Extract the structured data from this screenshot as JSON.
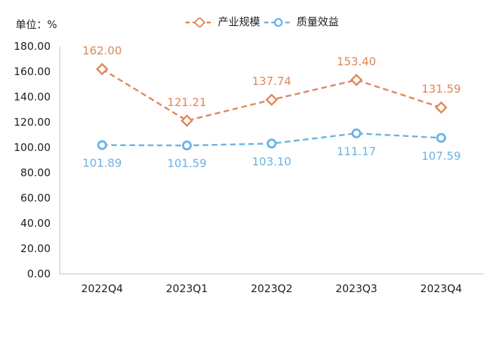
{
  "unit_label": "单位：%",
  "chart_data": {
    "type": "line",
    "categories": [
      "2022Q4",
      "2023Q1",
      "2023Q2",
      "2023Q3",
      "2023Q4"
    ],
    "series": [
      {
        "name": "产业规模",
        "values": [
          162.0,
          121.21,
          137.74,
          153.4,
          131.59
        ],
        "color": "#e0875a",
        "marker": "diamond",
        "line_style": "dashed",
        "label_position": "above"
      },
      {
        "name": "质量效益",
        "values": [
          101.89,
          101.59,
          103.1,
          111.17,
          107.59
        ],
        "color": "#6ab3e5",
        "marker": "circle",
        "line_style": "dashed",
        "label_position": "below"
      }
    ],
    "ylim": [
      0,
      180
    ],
    "yticks": [
      "0.00",
      "20.00",
      "40.00",
      "60.00",
      "80.00",
      "100.00",
      "120.00",
      "140.00",
      "160.00",
      "180.00"
    ],
    "grid": false,
    "legend_position": "top"
  }
}
